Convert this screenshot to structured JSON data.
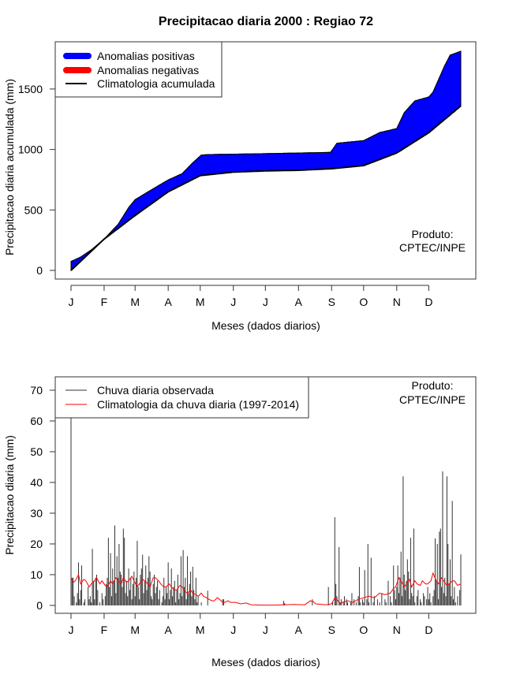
{
  "chart_data": [
    {
      "type": "area",
      "title": "Precipitacao diaria 2000 : Regiao 72",
      "xlabel": "Meses (dados diarios)",
      "ylabel": "Precipitacao diaria acumulada (mm)",
      "x_ticks": [
        "J",
        "F",
        "M",
        "A",
        "M",
        "J",
        "J",
        "A",
        "S",
        "O",
        "N",
        "D"
      ],
      "x_tick_days": [
        1,
        32,
        61,
        92,
        122,
        153,
        183,
        214,
        245,
        275,
        306,
        336
      ],
      "xlim": [
        1,
        366
      ],
      "y_ticks": [
        0,
        500,
        1000,
        1500
      ],
      "ylim": [
        -70,
        1840
      ],
      "legend": {
        "position": "top-left",
        "entries": [
          "Anomalias positivas",
          "Anomalias negativas",
          "Climatologia acumulada"
        ]
      },
      "annotation": [
        "Produto:",
        "CPTEC/INPE"
      ],
      "colors": {
        "positive": "#0000ff",
        "negative": "#ff0000",
        "climatology": "#000000"
      },
      "observed_cumulative": [
        [
          1,
          74
        ],
        [
          10,
          110
        ],
        [
          20,
          170
        ],
        [
          32,
          259
        ],
        [
          45,
          380
        ],
        [
          55,
          520
        ],
        [
          61,
          585
        ],
        [
          75,
          660
        ],
        [
          92,
          748
        ],
        [
          105,
          800
        ],
        [
          115,
          890
        ],
        [
          123,
          954
        ],
        [
          130,
          958
        ],
        [
          180,
          965
        ],
        [
          244,
          976
        ],
        [
          250,
          1052
        ],
        [
          275,
          1073
        ],
        [
          290,
          1140
        ],
        [
          306,
          1173
        ],
        [
          313,
          1304
        ],
        [
          323,
          1402
        ],
        [
          336,
          1434
        ],
        [
          340,
          1475
        ],
        [
          351,
          1695
        ],
        [
          356,
          1780
        ],
        [
          366,
          1812
        ]
      ],
      "climatology_cumulative": [
        [
          1,
          0
        ],
        [
          32,
          259
        ],
        [
          61,
          454
        ],
        [
          92,
          650
        ],
        [
          122,
          784
        ],
        [
          153,
          813
        ],
        [
          183,
          823
        ],
        [
          214,
          828
        ],
        [
          245,
          841
        ],
        [
          275,
          867
        ],
        [
          306,
          971
        ],
        [
          336,
          1139
        ],
        [
          366,
          1360
        ]
      ]
    },
    {
      "type": "bar",
      "xlabel": "Meses (dados diarios)",
      "ylabel": "Precipitacao diaria (mm)",
      "x_ticks": [
        "J",
        "F",
        "M",
        "A",
        "M",
        "J",
        "J",
        "A",
        "S",
        "O",
        "N",
        "D"
      ],
      "x_tick_days": [
        1,
        32,
        61,
        92,
        122,
        153,
        183,
        214,
        245,
        275,
        306,
        336
      ],
      "xlim": [
        1,
        366
      ],
      "y_ticks": [
        0,
        10,
        20,
        30,
        40,
        50,
        60,
        70
      ],
      "ylim": [
        -2.5,
        74
      ],
      "legend": {
        "position": "top-left",
        "entries": [
          "Chuva diaria observada",
          "Climatologia da chuva diaria (1997-2014)"
        ]
      },
      "annotation": [
        "Produto:",
        "CPTEC/INPE"
      ],
      "colors": {
        "observed": "#333333",
        "climatology": "#ff0000"
      },
      "observed_daily": {
        "jan": [
          61,
          9,
          9,
          3,
          0,
          1,
          4,
          14,
          2,
          5,
          13,
          0,
          1,
          2,
          0,
          0,
          6,
          2,
          3,
          1,
          18.4,
          8,
          2,
          9,
          10,
          5,
          0,
          1,
          0,
          4,
          2
        ],
        "feb": [
          0,
          3,
          7,
          9,
          22,
          6,
          17,
          3,
          12,
          8,
          26,
          4,
          16,
          9,
          20,
          11,
          10,
          6,
          25,
          22,
          4,
          8,
          3,
          12,
          5,
          9,
          2,
          7,
          11
        ],
        "mar": [
          3,
          9,
          21,
          6,
          2,
          10,
          12,
          16.5,
          4,
          8,
          13,
          5,
          9,
          16,
          11,
          3,
          2,
          7,
          10,
          4,
          6,
          8,
          2,
          5,
          0,
          1,
          3,
          9,
          2,
          6,
          4
        ],
        "apr": [
          14,
          2,
          5,
          12,
          3,
          6,
          8,
          1,
          5,
          10,
          2,
          4,
          16,
          3,
          18,
          6,
          9,
          2,
          16,
          4,
          7,
          11,
          3,
          12.6,
          5,
          2,
          9,
          1,
          3,
          0
        ],
        "may": [
          0,
          1,
          0,
          0,
          0,
          0,
          0,
          4.8,
          0,
          0,
          0,
          0,
          0,
          0,
          0,
          0,
          0,
          0,
          0,
          0,
          0,
          2,
          2,
          0,
          0,
          0,
          0,
          0,
          0,
          0,
          0
        ],
        "jun": [
          0,
          0,
          0,
          0,
          0,
          0,
          0,
          0,
          0,
          0,
          0,
          0,
          0,
          0,
          0,
          0,
          0,
          0,
          0,
          0,
          0,
          0,
          0,
          0,
          0,
          0,
          0,
          0,
          0,
          0
        ],
        "jul": [
          0,
          0,
          0,
          0,
          0,
          0,
          0,
          0,
          0,
          0,
          0,
          0,
          0,
          0,
          0,
          0,
          0,
          1.5,
          0.8,
          0,
          0,
          0,
          0,
          0,
          0,
          0,
          0,
          0,
          0,
          0,
          0
        ],
        "aug": [
          0,
          0,
          0,
          0,
          0,
          0,
          0,
          0,
          0,
          0,
          0,
          0,
          0,
          2,
          0,
          0,
          0,
          0,
          0,
          0,
          0,
          0,
          0,
          0,
          0,
          0,
          0,
          0,
          6,
          0,
          0
        ],
        "sep": [
          0,
          1,
          0,
          28.7,
          7,
          3,
          0,
          19,
          1,
          2,
          0,
          1,
          3,
          0,
          2,
          1,
          0,
          0,
          1,
          4,
          0,
          2,
          0,
          1,
          0,
          3,
          12.5,
          1,
          0,
          2
        ],
        "oct": [
          1,
          11.5,
          0,
          2,
          20,
          1,
          0,
          15.5,
          0,
          1,
          3,
          0,
          0,
          2,
          0,
          1,
          0,
          4,
          0,
          0,
          2,
          1,
          0,
          8,
          0,
          3,
          1,
          0,
          13,
          5,
          2
        ],
        "nov": [
          6,
          13,
          4,
          9,
          17.5,
          3,
          42,
          10,
          5,
          8,
          15,
          11,
          2,
          22,
          4,
          3,
          25,
          1,
          0,
          3,
          5,
          0,
          2,
          1,
          0,
          4,
          3,
          0,
          2,
          6
        ],
        "dec": [
          2,
          4,
          1,
          0,
          3,
          5,
          21.8,
          8,
          20,
          2,
          24,
          25,
          6,
          43.6,
          4,
          9,
          3,
          42,
          20,
          7,
          15,
          3,
          34,
          2,
          6,
          1,
          0,
          3,
          0,
          5,
          16.6
        ]
      },
      "climatology_daily": [
        [
          1,
          9
        ],
        [
          3,
          7.5
        ],
        [
          5,
          8
        ],
        [
          8,
          10
        ],
        [
          10,
          7
        ],
        [
          13,
          8.5
        ],
        [
          15,
          8
        ],
        [
          18,
          6
        ],
        [
          20,
          7
        ],
        [
          23,
          8
        ],
        [
          25,
          9
        ],
        [
          28,
          7
        ],
        [
          30,
          8
        ],
        [
          33,
          6.5
        ],
        [
          35,
          6
        ],
        [
          38,
          8
        ],
        [
          40,
          7
        ],
        [
          43,
          9
        ],
        [
          45,
          8
        ],
        [
          48,
          7
        ],
        [
          50,
          9
        ],
        [
          53,
          7.5
        ],
        [
          55,
          8
        ],
        [
          58,
          9.5
        ],
        [
          60,
          8
        ],
        [
          63,
          6
        ],
        [
          65,
          7
        ],
        [
          68,
          8.5
        ],
        [
          70,
          8
        ],
        [
          73,
          7
        ],
        [
          75,
          6
        ],
        [
          78,
          9
        ],
        [
          80,
          9
        ],
        [
          83,
          8
        ],
        [
          85,
          7
        ],
        [
          88,
          6
        ],
        [
          90,
          6
        ],
        [
          93,
          7
        ],
        [
          95,
          6
        ],
        [
          98,
          5
        ],
        [
          100,
          5
        ],
        [
          103,
          6.5
        ],
        [
          105,
          6
        ],
        [
          108,
          4.5
        ],
        [
          110,
          4
        ],
        [
          113,
          5
        ],
        [
          115,
          4
        ],
        [
          118,
          3.5
        ],
        [
          120,
          3
        ],
        [
          123,
          4
        ],
        [
          125,
          3
        ],
        [
          128,
          2.5
        ],
        [
          130,
          2
        ],
        [
          133,
          1.5
        ],
        [
          135,
          1.5
        ],
        [
          138,
          2.5
        ],
        [
          140,
          2
        ],
        [
          143,
          1
        ],
        [
          145,
          1
        ],
        [
          148,
          1.5
        ],
        [
          150,
          1
        ],
        [
          155,
          1
        ],
        [
          160,
          0.5
        ],
        [
          165,
          0.8
        ],
        [
          170,
          0.2
        ],
        [
          180,
          0.1
        ],
        [
          190,
          0.1
        ],
        [
          200,
          0.2
        ],
        [
          210,
          0.3
        ],
        [
          220,
          0.2
        ],
        [
          225,
          1.5
        ],
        [
          228,
          1.2
        ],
        [
          230,
          0.5
        ],
        [
          240,
          0.2
        ],
        [
          245,
          0.5
        ],
        [
          248,
          2.5
        ],
        [
          250,
          2
        ],
        [
          253,
          0.5
        ],
        [
          255,
          1
        ],
        [
          260,
          1.5
        ],
        [
          265,
          1
        ],
        [
          270,
          2
        ],
        [
          275,
          2.5
        ],
        [
          280,
          3
        ],
        [
          285,
          2.5
        ],
        [
          290,
          4
        ],
        [
          295,
          3.5
        ],
        [
          300,
          4
        ],
        [
          303,
          5.5
        ],
        [
          305,
          6
        ],
        [
          308,
          9
        ],
        [
          310,
          8
        ],
        [
          313,
          6
        ],
        [
          315,
          7
        ],
        [
          318,
          8.5
        ],
        [
          320,
          6
        ],
        [
          323,
          8
        ],
        [
          325,
          7
        ],
        [
          328,
          6.5
        ],
        [
          330,
          8
        ],
        [
          333,
          7
        ],
        [
          335,
          7
        ],
        [
          338,
          8
        ],
        [
          340,
          10.5
        ],
        [
          343,
          8
        ],
        [
          345,
          7
        ],
        [
          348,
          9
        ],
        [
          350,
          8
        ],
        [
          353,
          6.5
        ],
        [
          355,
          7
        ],
        [
          358,
          8
        ],
        [
          360,
          8
        ],
        [
          363,
          6.5
        ],
        [
          366,
          7
        ]
      ]
    }
  ]
}
